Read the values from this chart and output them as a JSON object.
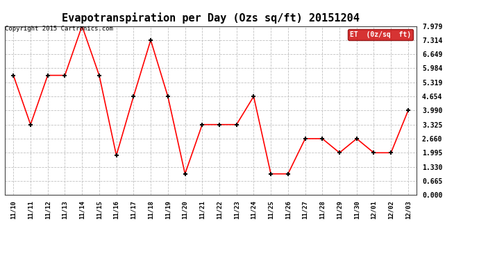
{
  "title": "Evapotranspiration per Day (Ozs sq/ft) 20151204",
  "copyright": "Copyright 2015 Cartronics.com",
  "legend_label": "ET  (0z/sq  ft)",
  "x_labels": [
    "11/10",
    "11/11",
    "11/12",
    "11/13",
    "11/14",
    "11/15",
    "11/16",
    "11/17",
    "11/18",
    "11/19",
    "11/20",
    "11/21",
    "11/22",
    "11/23",
    "11/24",
    "11/25",
    "11/26",
    "11/27",
    "11/28",
    "11/29",
    "11/30",
    "12/01",
    "12/02",
    "12/03"
  ],
  "y_values": [
    5.65,
    3.325,
    5.65,
    5.65,
    7.979,
    5.65,
    1.87,
    4.654,
    7.314,
    4.654,
    0.998,
    3.325,
    3.325,
    3.325,
    4.654,
    0.998,
    0.998,
    2.66,
    2.66,
    1.995,
    2.66,
    1.995,
    1.995,
    3.99
  ],
  "y_min": 0.0,
  "y_max": 7.979,
  "y_ticks": [
    0.0,
    0.665,
    1.33,
    1.995,
    2.66,
    3.325,
    3.99,
    4.654,
    5.319,
    5.984,
    6.649,
    7.314,
    7.979
  ],
  "line_color": "#FF0000",
  "marker_color": "#000000",
  "background_color": "#FFFFFF",
  "grid_color": "#C0C0C0",
  "title_fontsize": 11,
  "legend_bg_color": "#CC0000",
  "legend_text_color": "#FFFFFF",
  "fig_width": 6.9,
  "fig_height": 3.75,
  "dpi": 100
}
